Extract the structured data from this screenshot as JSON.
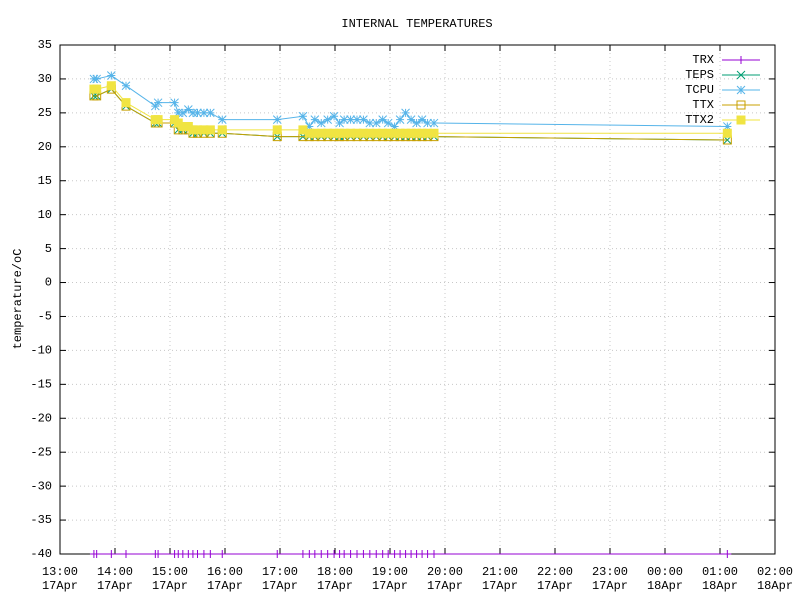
{
  "chart_data": {
    "type": "line",
    "title": "INTERNAL TEMPERATURES",
    "y_label": "temperature/oC",
    "x": [
      "17Apr 13:37",
      "17Apr 13:40",
      "17Apr 13:56",
      "17Apr 14:12",
      "17Apr 14:44",
      "17Apr 14:47",
      "17Apr 15:05",
      "17Apr 15:09",
      "17Apr 15:14",
      "17Apr 15:20",
      "17Apr 15:25",
      "17Apr 15:30",
      "17Apr 15:37",
      "17Apr 15:44",
      "17Apr 15:57",
      "17Apr 16:57",
      "17Apr 17:25",
      "17Apr 17:32",
      "17Apr 17:38",
      "17Apr 17:45",
      "17Apr 17:52",
      "17Apr 17:59",
      "17Apr 18:05",
      "17Apr 18:10",
      "17Apr 18:17",
      "17Apr 18:24",
      "17Apr 18:31",
      "17Apr 18:38",
      "17Apr 18:45",
      "17Apr 18:52",
      "17Apr 18:58",
      "17Apr 19:05",
      "17Apr 19:11",
      "17Apr 19:17",
      "17Apr 19:23",
      "17Apr 19:29",
      "17Apr 19:35",
      "17Apr 19:41",
      "17Apr 19:48",
      "18Apr 01:08"
    ],
    "series": [
      {
        "name": "TRX",
        "color": "#9400d3",
        "marker": "plus",
        "values": [
          -40,
          -40,
          -40,
          -40,
          -40,
          -40,
          -40,
          -40,
          -40,
          -40,
          -40,
          -40,
          -40,
          -40,
          -40,
          -40,
          -40,
          -40,
          -40,
          -40,
          -40,
          -40,
          -40,
          -40,
          -40,
          -40,
          -40,
          -40,
          -40,
          -40,
          -40,
          -40,
          -40,
          -40,
          -40,
          -40,
          -40,
          -40,
          -40,
          -40
        ]
      },
      {
        "name": "TEPS",
        "color": "#009e73",
        "marker": "cross",
        "values": [
          27.5,
          27.5,
          28.5,
          26,
          23.5,
          23.5,
          23.5,
          22.5,
          22.5,
          22.5,
          22,
          22,
          22,
          22,
          22,
          21.5,
          21.5,
          21.5,
          21.5,
          21.5,
          21.5,
          21.5,
          21.5,
          21.5,
          21.5,
          21.5,
          21.5,
          21.5,
          21.5,
          21.5,
          21.5,
          21.5,
          21.5,
          21.5,
          21.5,
          21.5,
          21.5,
          21.5,
          21.5,
          21
        ]
      },
      {
        "name": "TCPU",
        "color": "#56b4e9",
        "marker": "star",
        "values": [
          30,
          30,
          30.5,
          29,
          26,
          26.5,
          26.5,
          25,
          25,
          25.5,
          25,
          25,
          25,
          25,
          24,
          24,
          24.5,
          23,
          24,
          23.5,
          24,
          24.5,
          23.5,
          24,
          24,
          24,
          24,
          23.5,
          23.5,
          24,
          23.5,
          23,
          24,
          25,
          24,
          23.5,
          24,
          23.5,
          23.5,
          23
        ]
      },
      {
        "name": "TTX",
        "color": "#c8a000",
        "marker": "square",
        "values": [
          27.5,
          27.5,
          28.5,
          26,
          23.5,
          23.5,
          23.5,
          22.5,
          22.5,
          22.5,
          22,
          22,
          22,
          22,
          22,
          21.5,
          21.5,
          21.5,
          21.5,
          21.5,
          21.5,
          21.5,
          21.5,
          21.5,
          21.5,
          21.5,
          21.5,
          21.5,
          21.5,
          21.5,
          21.5,
          21.5,
          21.5,
          21.5,
          21.5,
          21.5,
          21.5,
          21.5,
          21.5,
          21
        ]
      },
      {
        "name": "TTX2",
        "color": "#f0e442",
        "marker": "filled-square",
        "values": [
          28.5,
          28.5,
          29,
          26.5,
          24,
          24,
          24,
          23.5,
          23,
          23,
          22.5,
          22.5,
          22.5,
          22.5,
          22.5,
          22.5,
          22.5,
          22,
          22,
          22,
          22,
          22,
          22,
          22,
          22,
          22,
          22,
          22,
          22,
          22,
          22,
          22,
          22,
          22,
          22,
          22,
          22,
          22,
          22,
          22
        ]
      }
    ],
    "xlim": [
      "17Apr 13:00",
      "18Apr 02:00"
    ],
    "xticks": [
      {
        "value": "17Apr 13:00",
        "label": [
          "13:00",
          "17Apr"
        ]
      },
      {
        "value": "17Apr 14:00",
        "label": [
          "14:00",
          "17Apr"
        ]
      },
      {
        "value": "17Apr 15:00",
        "label": [
          "15:00",
          "17Apr"
        ]
      },
      {
        "value": "17Apr 16:00",
        "label": [
          "16:00",
          "17Apr"
        ]
      },
      {
        "value": "17Apr 17:00",
        "label": [
          "17:00",
          "17Apr"
        ]
      },
      {
        "value": "17Apr 18:00",
        "label": [
          "18:00",
          "17Apr"
        ]
      },
      {
        "value": "17Apr 19:00",
        "label": [
          "19:00",
          "17Apr"
        ]
      },
      {
        "value": "17Apr 20:00",
        "label": [
          "20:00",
          "17Apr"
        ]
      },
      {
        "value": "17Apr 21:00",
        "label": [
          "21:00",
          "17Apr"
        ]
      },
      {
        "value": "17Apr 22:00",
        "label": [
          "22:00",
          "17Apr"
        ]
      },
      {
        "value": "17Apr 23:00",
        "label": [
          "23:00",
          "17Apr"
        ]
      },
      {
        "value": "18Apr 00:00",
        "label": [
          "00:00",
          "18Apr"
        ]
      },
      {
        "value": "18Apr 01:00",
        "label": [
          "01:00",
          "18Apr"
        ]
      },
      {
        "value": "18Apr 02:00",
        "label": [
          "02:00",
          "18Apr"
        ]
      }
    ],
    "ylim": [
      -40,
      35
    ],
    "yticks": [
      -40,
      -35,
      -30,
      -25,
      -20,
      -15,
      -10,
      -5,
      0,
      5,
      10,
      15,
      20,
      25,
      30,
      35
    ],
    "grid": true,
    "legend": "top-right"
  }
}
